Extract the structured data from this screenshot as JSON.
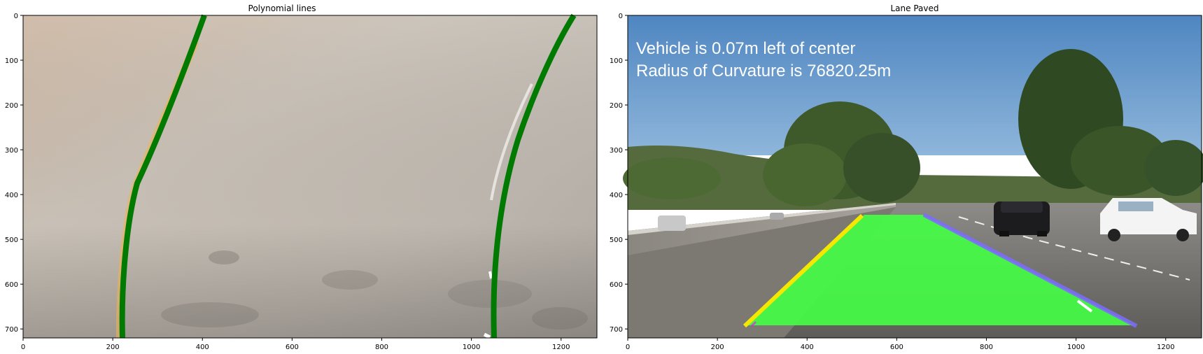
{
  "panels": [
    {
      "title": "Polynomial lines",
      "xticks": [
        "0",
        "200",
        "400",
        "600",
        "800",
        "1000",
        "1200"
      ],
      "yticks": [
        "0",
        "100",
        "200",
        "300",
        "400",
        "500",
        "600",
        "700"
      ]
    },
    {
      "title": "Lane Paved",
      "xticks": [
        "0",
        "200",
        "400",
        "600",
        "800",
        "1000",
        "1200"
      ],
      "yticks": [
        "0",
        "100",
        "200",
        "300",
        "400",
        "500",
        "600",
        "700"
      ],
      "overlay_lines": [
        "Vehicle is 0.07m left of center",
        "Radius of Curvature is 76820.25m"
      ]
    }
  ],
  "colors": {
    "fit_line": "#007a00",
    "lane_fill": "#44ff44",
    "left_marker": "#f5e800",
    "right_marker": "#7c6cff",
    "sky": "#5b8ec4",
    "road": "#7a7a78"
  }
}
